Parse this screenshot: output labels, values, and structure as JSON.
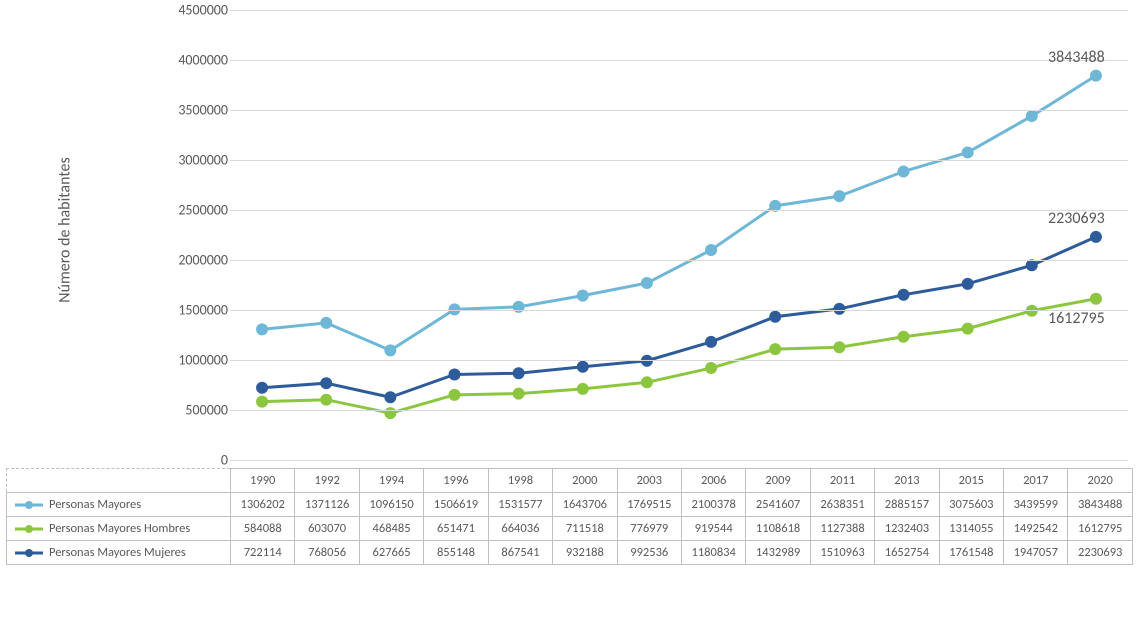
{
  "chart": {
    "type": "line",
    "yaxis_title": "Número de habitantes",
    "background_color": "#ffffff",
    "grid_color": "#d9d9d9",
    "border_color": "#bfbfbf",
    "text_color": "#595959",
    "ylim": [
      0,
      4500000
    ],
    "ytick_step": 500000,
    "yticks": [
      0,
      500000,
      1000000,
      1500000,
      2000000,
      2500000,
      3000000,
      3500000,
      4000000,
      4500000
    ],
    "categories": [
      "1990",
      "1992",
      "1994",
      "1996",
      "1998",
      "2000",
      "2003",
      "2006",
      "2009",
      "2011",
      "2013",
      "2015",
      "2017",
      "2020"
    ],
    "line_width": 3,
    "marker_radius": 6,
    "label_fontsize": 14,
    "axis_title_fontsize": 16,
    "end_label_fontsize": 16,
    "series": [
      {
        "name": "Personas Mayores",
        "color": "#6eb7d7",
        "values": [
          1306202,
          1371126,
          1096150,
          1506619,
          1531577,
          1643706,
          1769515,
          2100378,
          2541607,
          2638351,
          2885157,
          3075603,
          3439599,
          3843488
        ],
        "end_label": "3843488"
      },
      {
        "name": "Personas Mayores Hombres",
        "color": "#8cc63f",
        "values": [
          584088,
          603070,
          468485,
          651471,
          664036,
          711518,
          776979,
          919544,
          1108618,
          1127388,
          1232403,
          1314055,
          1492542,
          1612795
        ],
        "end_label": "1612795"
      },
      {
        "name": "Personas Mayores Mujeres",
        "color": "#2e5c9a",
        "values": [
          722114,
          768056,
          627665,
          855148,
          867541,
          932188,
          992536,
          1180834,
          1432989,
          1510963,
          1652754,
          1761548,
          1947057,
          2230693
        ],
        "end_label": "2230693"
      }
    ]
  }
}
